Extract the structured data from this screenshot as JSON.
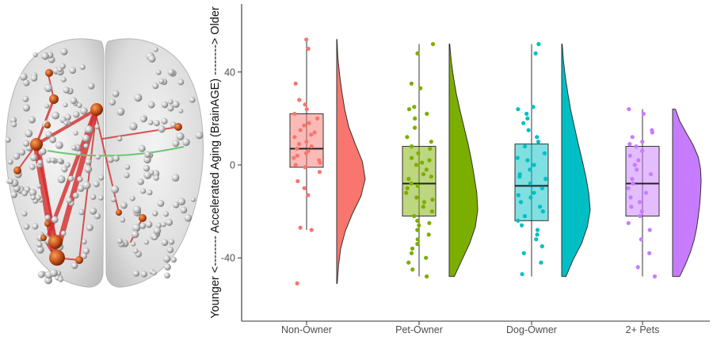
{
  "chart_data": {
    "type": "raincloud",
    "title": "",
    "xlabel": "",
    "ylabel": "Younger <-------- Accelerated Aging (BrainAGE) --------> Older",
    "ylim": [
      -66,
      70
    ],
    "yticks": [
      -40,
      0,
      40
    ],
    "categories": [
      "Non-Owner",
      "Pet-Owner",
      "Dog-Owner",
      "2+ Pets"
    ],
    "grid": false,
    "legend": "none",
    "series": [
      {
        "name": "Non-Owner",
        "color": "#F8766D",
        "box": {
          "min": -28,
          "q1": -1,
          "median": 7,
          "q3": 22,
          "max": 54
        },
        "density_range": [
          -51,
          54
        ],
        "density": [
          0.02,
          0.06,
          0.14,
          0.3,
          0.55,
          0.85,
          1.0,
          0.9,
          0.65,
          0.42,
          0.28,
          0.18,
          0.1,
          0.04,
          0.01
        ],
        "points": [
          54,
          50,
          35,
          28,
          26,
          24,
          22,
          20,
          18,
          17,
          15,
          14,
          13,
          12,
          10,
          9,
          8,
          7,
          6,
          5,
          4,
          3,
          2,
          1,
          0,
          -1,
          -3,
          -7,
          -10,
          -13,
          -28,
          -27,
          -51
        ]
      },
      {
        "name": "Pet-Owner",
        "color": "#7CAE00",
        "box": {
          "min": -48,
          "q1": -22,
          "median": -8,
          "q3": 8,
          "max": 52
        },
        "density_range": [
          -48,
          52
        ],
        "density": [
          0.18,
          0.45,
          0.72,
          0.92,
          1.0,
          0.97,
          0.88,
          0.78,
          0.66,
          0.52,
          0.38,
          0.25,
          0.15,
          0.07,
          0.02
        ],
        "points": [
          52,
          48,
          35,
          33,
          25,
          24,
          22,
          20,
          16,
          12,
          10,
          8,
          7,
          5,
          3,
          1,
          0,
          -2,
          -4,
          -6,
          -8,
          -9,
          -10,
          -12,
          -14,
          -16,
          -18,
          -20,
          -22,
          -24,
          -26,
          -28,
          -30,
          -32,
          -34,
          -36,
          -38,
          -40,
          -42,
          -45,
          -48,
          -25,
          -15,
          -5,
          2
        ]
      },
      {
        "name": "Dog-Owner",
        "color": "#00BFC4",
        "box": {
          "min": -48,
          "q1": -24,
          "median": -9,
          "q3": 9,
          "max": 52
        },
        "density_range": [
          -48,
          52
        ],
        "density": [
          0.15,
          0.4,
          0.7,
          0.9,
          1.0,
          0.95,
          0.85,
          0.72,
          0.58,
          0.45,
          0.32,
          0.22,
          0.13,
          0.06,
          0.02
        ],
        "points": [
          52,
          48,
          25,
          24,
          22,
          20,
          18,
          15,
          12,
          10,
          8,
          5,
          3,
          2,
          0,
          -2,
          -4,
          -6,
          -8,
          -10,
          -12,
          -14,
          -16,
          -18,
          -20,
          -22,
          -24,
          -26,
          -28,
          -30,
          -32,
          -35,
          -38,
          -42,
          -47,
          -13,
          -5
        ]
      },
      {
        "name": "2+ Pets",
        "color": "#C77CFF",
        "box": {
          "min": -48,
          "q1": -22,
          "median": -8,
          "q3": 8,
          "max": 24
        },
        "density_range": [
          -48,
          24
        ],
        "density": [
          0.25,
          0.45,
          0.62,
          0.75,
          0.84,
          0.9,
          0.95,
          0.98,
          1.0,
          0.98,
          0.9,
          0.72,
          0.48,
          0.25,
          0.1
        ],
        "points": [
          24,
          22,
          15,
          14,
          12,
          10,
          9,
          8,
          6,
          4,
          2,
          0,
          -2,
          -4,
          -6,
          -8,
          -10,
          -12,
          -14,
          -16,
          -18,
          -20,
          -22,
          -25,
          -28,
          -32,
          -38,
          -44,
          -48
        ]
      }
    ]
  },
  "brain_figure": {
    "description_icon": "brain-network-icon"
  }
}
